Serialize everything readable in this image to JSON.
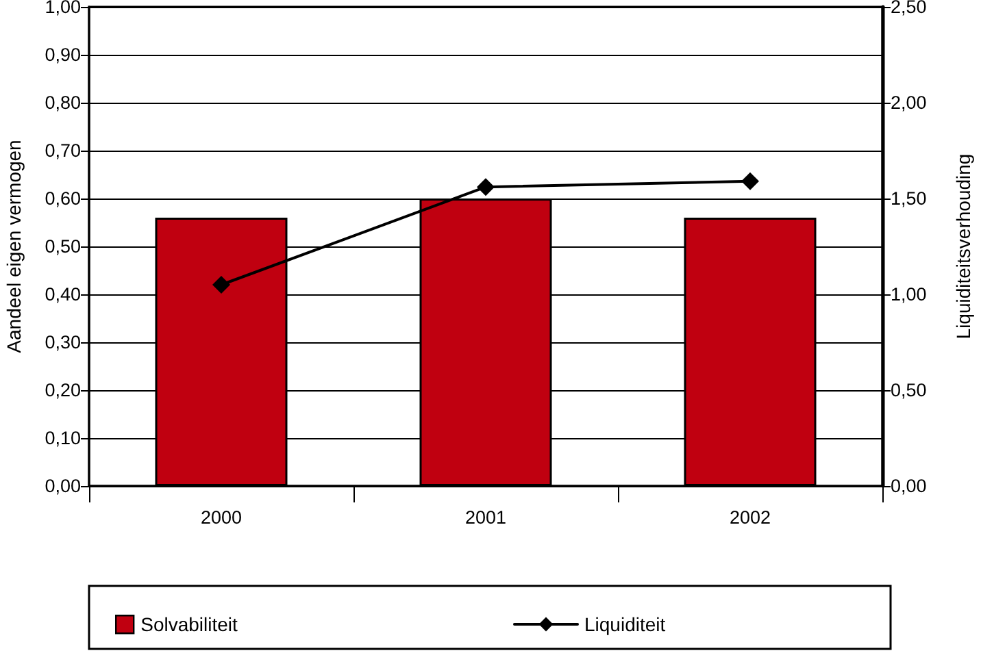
{
  "chart_data": {
    "type": "bar",
    "categories": [
      "2000",
      "2001",
      "2002"
    ],
    "series": [
      {
        "name": "Solvabiliteit",
        "color": "#c00010",
        "values": [
          0.56,
          0.6,
          0.56
        ]
      },
      {
        "name": "Liquiditeit",
        "type": "line",
        "axis": "y2",
        "color": "#000000",
        "values": [
          1.05,
          1.56,
          1.59
        ]
      }
    ],
    "ylabel": "Aandeel eigen vermogen",
    "y2label": "Liquiditeitsverhouding",
    "ylim": [
      0,
      1
    ],
    "yticks": [
      {
        "value": 0,
        "label": "0,00"
      },
      {
        "value": 0.1,
        "label": "0,10"
      },
      {
        "value": 0.2,
        "label": "0,20"
      },
      {
        "value": 0.3,
        "label": "0,30"
      },
      {
        "value": 0.4,
        "label": "0,40"
      },
      {
        "value": 0.5,
        "label": "0,50"
      },
      {
        "value": 0.6,
        "label": "0,60"
      },
      {
        "value": 0.7,
        "label": "0,70"
      },
      {
        "value": 0.8,
        "label": "0,80"
      },
      {
        "value": 0.9,
        "label": "0,90"
      },
      {
        "value": 1,
        "label": "1,00"
      }
    ],
    "y2lim": [
      0,
      2.5
    ],
    "y2ticks": [
      {
        "value": 0,
        "label": "0,00"
      },
      {
        "value": 0.5,
        "label": "0,50"
      },
      {
        "value": 1,
        "label": "1,00"
      },
      {
        "value": 1.5,
        "label": "1,50"
      },
      {
        "value": 2,
        "label": "2,00"
      },
      {
        "value": 2.5,
        "label": "2,50"
      }
    ],
    "grid": "y",
    "legend": "bottom",
    "marker": "diamond",
    "line_style": "solid"
  }
}
